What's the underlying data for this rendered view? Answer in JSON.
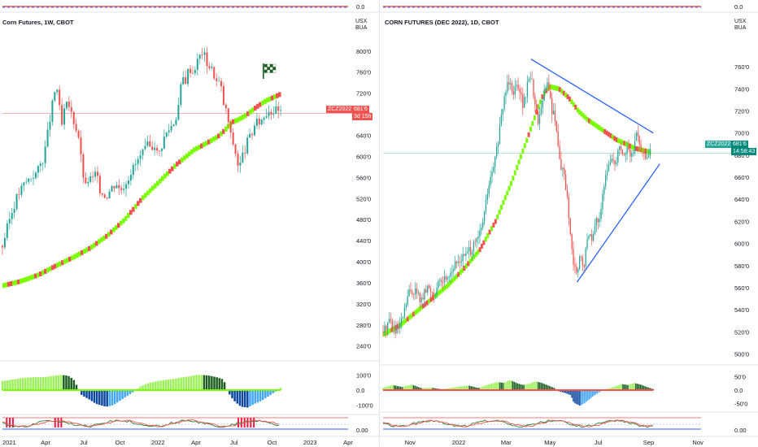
{
  "colors": {
    "up": "#26a69a",
    "down": "#ef5350",
    "ribbon_up": "#7cfc00",
    "ribbon_down": "#ef5350",
    "trendline": "#2962ff",
    "price_line": "#f7a6a9",
    "hist_pos_dark": "#1b5e20",
    "hist_pos_light": "#9cf05a",
    "hist_neg_dark": "#0d47a1",
    "hist_neg_light": "#42a5f5",
    "flag": "#1b5e20"
  },
  "left": {
    "title": "Corn Futures, 1W, CBOT",
    "unit": [
      "USX",
      "BUA"
    ],
    "top_axis_value": "0.0",
    "symbol_tag": "ZCZ2022",
    "price_tag": "681'6",
    "countdown_tag": "3d 15h",
    "osc1_labels": [
      "100'0",
      "0.0",
      "-100'0"
    ],
    "osc2_labels": [
      "0.00"
    ],
    "icons": [
      "checkered-flag-icon"
    ]
  },
  "right": {
    "title": "CORN FUTURES (DEC 2022), 1D, CBOT",
    "unit": [
      "USX",
      "BUA"
    ],
    "top_axis_value": "0.0",
    "symbol_tag": "ZCZ2022",
    "price_tag": "681'6",
    "countdown_tag": "14:58:43",
    "osc1_labels": [
      "50'0",
      "0.0",
      "-50'0"
    ],
    "osc2_labels": [
      "0.00"
    ]
  },
  "chart_data": [
    {
      "type": "candlestick",
      "title": "Corn Futures, 1W, CBOT",
      "ylabel": "USX / BUA",
      "ylim": [
        218,
        812
      ],
      "y_ticks": [
        240,
        280,
        320,
        360,
        400,
        440,
        480,
        520,
        560,
        600,
        640,
        680,
        720,
        760,
        800
      ],
      "y_tick_labels": [
        "240'0",
        "280'0",
        "320'0",
        "360'0",
        "400'0",
        "440'0",
        "480'0",
        "520'0",
        "560'0",
        "600'0",
        "640'0",
        "680'0",
        "720'0",
        "760'0",
        "800'0"
      ],
      "x_range": [
        0,
        100
      ],
      "x_ticks": [
        {
          "pos": 0,
          "label": "2021"
        },
        {
          "pos": 12.5,
          "label": "Apr"
        },
        {
          "pos": 23.5,
          "label": "Jul"
        },
        {
          "pos": 34,
          "label": "Oct"
        },
        {
          "pos": 45,
          "label": "2022"
        },
        {
          "pos": 56,
          "label": "Apr"
        },
        {
          "pos": 67,
          "label": "Jul"
        },
        {
          "pos": 78,
          "label": "Oct"
        },
        {
          "pos": 89,
          "label": "2023"
        },
        {
          "pos": 100,
          "label": "Apr"
        }
      ],
      "last_price": 681.75,
      "price_path": [
        [
          0,
          430
        ],
        [
          2,
          480
        ],
        [
          4,
          520
        ],
        [
          6,
          545
        ],
        [
          8,
          560
        ],
        [
          10,
          570
        ],
        [
          12,
          600
        ],
        [
          13.5,
          660
        ],
        [
          15,
          720
        ],
        [
          16,
          730
        ],
        [
          17,
          650
        ],
        [
          18,
          690
        ],
        [
          19,
          700
        ],
        [
          20,
          680
        ],
        [
          21,
          660
        ],
        [
          22,
          640
        ],
        [
          23,
          580
        ],
        [
          24,
          540
        ],
        [
          25,
          560
        ],
        [
          26,
          555
        ],
        [
          27,
          570
        ],
        [
          28,
          540
        ],
        [
          29,
          530
        ],
        [
          30,
          525
        ],
        [
          31,
          535
        ],
        [
          32,
          545
        ],
        [
          33,
          550
        ],
        [
          34,
          535
        ],
        [
          35,
          545
        ],
        [
          36,
          555
        ],
        [
          37,
          570
        ],
        [
          38,
          580
        ],
        [
          39,
          590
        ],
        [
          40,
          600
        ],
        [
          41,
          610
        ],
        [
          42,
          620
        ],
        [
          43,
          615
        ],
        [
          44,
          625
        ],
        [
          45,
          600
        ],
        [
          46,
          620
        ],
        [
          47,
          640
        ],
        [
          48,
          650
        ],
        [
          49,
          660
        ],
        [
          50,
          670
        ],
        [
          51,
          700
        ],
        [
          52,
          750
        ],
        [
          53,
          745
        ],
        [
          54,
          770
        ],
        [
          55,
          760
        ],
        [
          56,
          775
        ],
        [
          57,
          790
        ],
        [
          58,
          800
        ],
        [
          59,
          780
        ],
        [
          60,
          770
        ],
        [
          61,
          760
        ],
        [
          62,
          740
        ],
        [
          63,
          740
        ],
        [
          64,
          700
        ],
        [
          65,
          680
        ],
        [
          66,
          640
        ],
        [
          67,
          620
        ],
        [
          68,
          590
        ],
        [
          68.5,
          570
        ],
        [
          69,
          595
        ],
        [
          70,
          610
        ],
        [
          71,
          630
        ],
        [
          72,
          640
        ],
        [
          73,
          660
        ],
        [
          74,
          665
        ],
        [
          75,
          670
        ],
        [
          76,
          680
        ],
        [
          77,
          690
        ],
        [
          78,
          685
        ],
        [
          79,
          688
        ],
        [
          80,
          683
        ],
        [
          80.5,
          682
        ]
      ],
      "ribbon_path": [
        [
          0,
          355
        ],
        [
          5,
          363
        ],
        [
          10,
          375
        ],
        [
          15,
          392
        ],
        [
          20,
          408
        ],
        [
          25,
          426
        ],
        [
          30,
          450
        ],
        [
          35,
          480
        ],
        [
          40,
          520
        ],
        [
          45,
          552
        ],
        [
          50,
          585
        ],
        [
          55,
          612
        ],
        [
          60,
          630
        ],
        [
          62,
          638
        ],
        [
          64,
          650
        ],
        [
          66,
          665
        ],
        [
          68,
          670
        ],
        [
          70,
          678
        ],
        [
          72,
          688
        ],
        [
          74,
          698
        ],
        [
          76,
          706
        ],
        [
          78,
          712
        ],
        [
          80,
          718
        ]
      ],
      "osc1_range": [
        -150,
        150
      ],
      "osc1_hist": [
        [
          0,
          60
        ],
        [
          3,
          70
        ],
        [
          6,
          80
        ],
        [
          9,
          85
        ],
        [
          12,
          85
        ],
        [
          15,
          95
        ],
        [
          17,
          100
        ],
        [
          19,
          95
        ],
        [
          20,
          80
        ],
        [
          21,
          60
        ],
        [
          22,
          0
        ],
        [
          23,
          -35
        ],
        [
          25,
          -60
        ],
        [
          27,
          -90
        ],
        [
          30,
          -110
        ],
        [
          32,
          -100
        ],
        [
          34,
          -70
        ],
        [
          36,
          -40
        ],
        [
          38,
          -10
        ],
        [
          40,
          25
        ],
        [
          42,
          45
        ],
        [
          45,
          60
        ],
        [
          48,
          70
        ],
        [
          50,
          75
        ],
        [
          52,
          85
        ],
        [
          54,
          90
        ],
        [
          56,
          100
        ],
        [
          58,
          100
        ],
        [
          60,
          95
        ],
        [
          62,
          85
        ],
        [
          64,
          70
        ],
        [
          65,
          0
        ],
        [
          66,
          -40
        ],
        [
          67,
          -70
        ],
        [
          69,
          -110
        ],
        [
          71,
          -115
        ],
        [
          73,
          -90
        ],
        [
          75,
          -70
        ],
        [
          77,
          -40
        ],
        [
          79,
          -10
        ],
        [
          80.5,
          15
        ]
      ],
      "osc2_range": [
        0,
        100
      ],
      "osc2_red_bars": [
        [
          1,
          3
        ],
        [
          15,
          17
        ],
        [
          68,
          73
        ]
      ]
    },
    {
      "type": "candlestick",
      "title": "CORN FUTURES (DEC 2022), 1D, CBOT",
      "ylabel": "USX / BUA",
      "ylim": [
        493,
        780
      ],
      "y_ticks": [
        500,
        520,
        540,
        560,
        580,
        600,
        620,
        640,
        660,
        680,
        700,
        720,
        740,
        760
      ],
      "y_tick_labels": [
        "500'0",
        "520'0",
        "540'0",
        "560'0",
        "580'0",
        "600'0",
        "620'0",
        "640'0",
        "660'0",
        "680'0",
        "700'0",
        "720'0",
        "740'0",
        "760'0"
      ],
      "x_range": [
        0,
        100
      ],
      "x_ticks": [
        {
          "pos": 8.5,
          "label": "Nov"
        },
        {
          "pos": 23.8,
          "label": "2022"
        },
        {
          "pos": 38.7,
          "label": "Mar"
        },
        {
          "pos": 52.5,
          "label": "May"
        },
        {
          "pos": 67.7,
          "label": "Jul"
        },
        {
          "pos": 83.5,
          "label": "Sep"
        },
        {
          "pos": 99,
          "label": "Nov"
        }
      ],
      "last_price": 681.75,
      "price_path": [
        [
          0,
          520
        ],
        [
          2,
          532
        ],
        [
          4,
          518
        ],
        [
          6,
          530
        ],
        [
          8,
          555
        ],
        [
          10,
          558
        ],
        [
          12,
          548
        ],
        [
          14,
          560
        ],
        [
          16,
          555
        ],
        [
          18,
          565
        ],
        [
          20,
          570
        ],
        [
          22,
          578
        ],
        [
          24,
          585
        ],
        [
          26,
          590
        ],
        [
          28,
          595
        ],
        [
          30,
          605
        ],
        [
          31,
          615
        ],
        [
          32,
          630
        ],
        [
          33,
          650
        ],
        [
          34,
          660
        ],
        [
          35,
          672
        ],
        [
          36,
          690
        ],
        [
          37,
          710
        ],
        [
          38,
          730
        ],
        [
          39,
          745
        ],
        [
          40,
          750
        ],
        [
          41,
          735
        ],
        [
          42,
          748
        ],
        [
          43,
          740
        ],
        [
          44,
          725
        ],
        [
          45,
          735
        ],
        [
          46,
          755
        ],
        [
          47,
          745
        ],
        [
          48,
          720
        ],
        [
          49,
          710
        ],
        [
          50,
          730
        ],
        [
          51,
          740
        ],
        [
          52,
          745
        ],
        [
          53,
          720
        ],
        [
          54,
          715
        ],
        [
          55,
          690
        ],
        [
          56,
          670
        ],
        [
          57,
          660
        ],
        [
          58,
          640
        ],
        [
          59,
          600
        ],
        [
          60,
          580
        ],
        [
          61,
          570
        ],
        [
          62,
          590
        ],
        [
          63,
          575
        ],
        [
          64,
          600
        ],
        [
          65,
          610
        ],
        [
          66,
          605
        ],
        [
          67,
          620
        ],
        [
          68,
          625
        ],
        [
          69,
          640
        ],
        [
          70,
          660
        ],
        [
          71,
          670
        ],
        [
          72,
          680
        ],
        [
          73,
          670
        ],
        [
          74,
          690
        ],
        [
          75,
          685
        ],
        [
          76,
          680
        ],
        [
          77,
          688
        ],
        [
          78,
          676
        ],
        [
          79,
          690
        ],
        [
          80,
          700
        ],
        [
          81,
          685
        ],
        [
          82,
          678
        ],
        [
          83,
          680
        ],
        [
          84,
          683
        ]
      ],
      "ribbon_path": [
        [
          0,
          518
        ],
        [
          5,
          526
        ],
        [
          10,
          538
        ],
        [
          15,
          550
        ],
        [
          20,
          562
        ],
        [
          25,
          577
        ],
        [
          30,
          594
        ],
        [
          35,
          620
        ],
        [
          40,
          655
        ],
        [
          45,
          695
        ],
        [
          48,
          720
        ],
        [
          50,
          735
        ],
        [
          52,
          742
        ],
        [
          55,
          740
        ],
        [
          58,
          732
        ],
        [
          61,
          720
        ],
        [
          64,
          712
        ],
        [
          67,
          706
        ],
        [
          70,
          700
        ],
        [
          73,
          694
        ],
        [
          76,
          690
        ],
        [
          79,
          686
        ],
        [
          82,
          684
        ],
        [
          84,
          682
        ]
      ],
      "trendline_upper": [
        [
          46.5,
          767
        ],
        [
          85,
          700
        ]
      ],
      "trendline_lower": [
        [
          61,
          565
        ],
        [
          87,
          672
        ]
      ],
      "osc1_range": [
        -80,
        80
      ],
      "osc1_hist": [
        [
          0,
          10
        ],
        [
          3,
          20
        ],
        [
          6,
          12
        ],
        [
          9,
          22
        ],
        [
          12,
          8
        ],
        [
          15,
          10
        ],
        [
          18,
          4
        ],
        [
          20,
          6
        ],
        [
          24,
          14
        ],
        [
          27,
          18
        ],
        [
          30,
          8
        ],
        [
          33,
          22
        ],
        [
          36,
          32
        ],
        [
          38,
          28
        ],
        [
          40,
          40
        ],
        [
          42,
          28
        ],
        [
          44,
          20
        ],
        [
          46,
          25
        ],
        [
          48,
          35
        ],
        [
          50,
          28
        ],
        [
          52,
          18
        ],
        [
          54,
          8
        ],
        [
          55,
          -4
        ],
        [
          57,
          -10
        ],
        [
          59,
          -20
        ],
        [
          60,
          -50
        ],
        [
          62,
          -62
        ],
        [
          64,
          -45
        ],
        [
          66,
          -25
        ],
        [
          68,
          -8
        ],
        [
          70,
          4
        ],
        [
          73,
          14
        ],
        [
          75,
          24
        ],
        [
          77,
          20
        ],
        [
          79,
          28
        ],
        [
          81,
          22
        ],
        [
          83,
          12
        ],
        [
          85,
          4
        ]
      ],
      "osc2_range": [
        0,
        100
      ]
    }
  ]
}
